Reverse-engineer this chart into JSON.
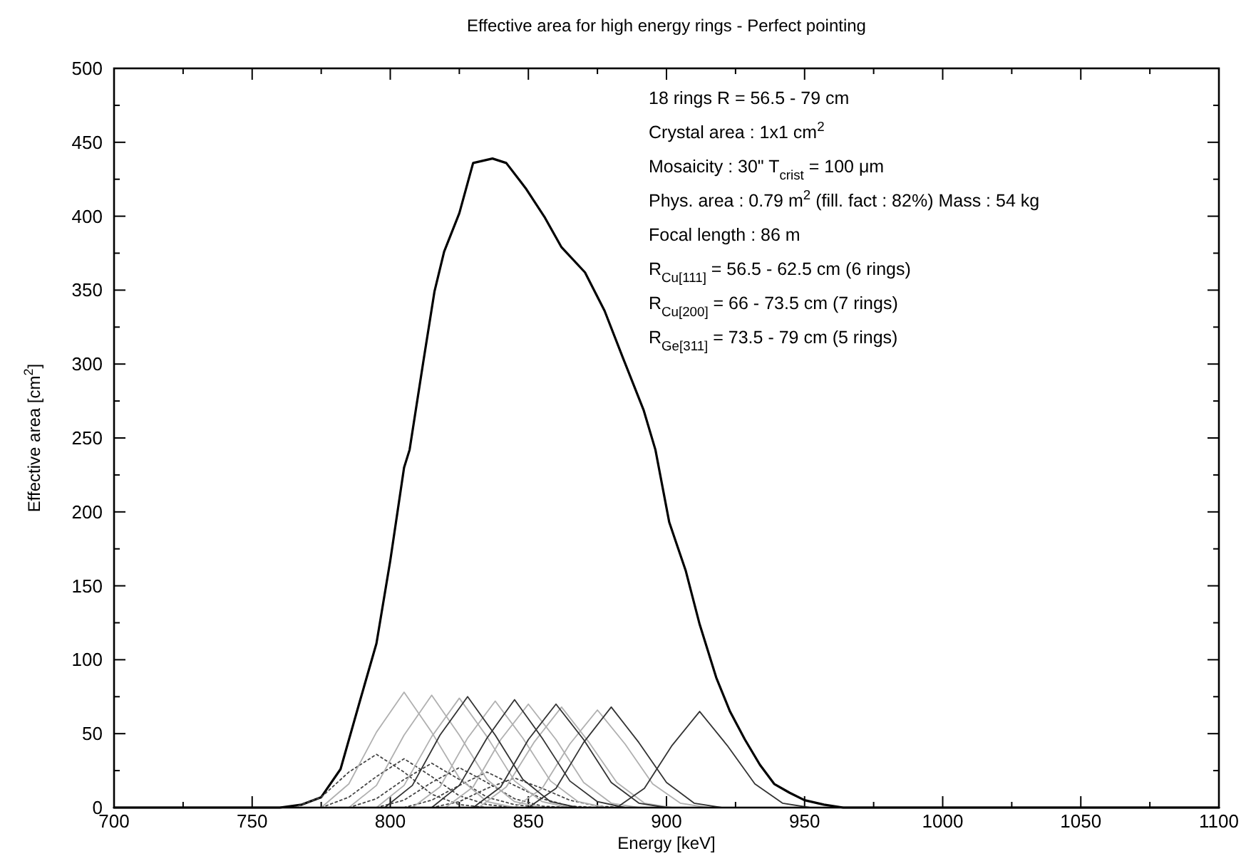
{
  "chart_data": {
    "type": "line",
    "title": "Effective area for high energy rings - Perfect pointing",
    "xlabel": "Energy [keV]",
    "ylabel": "Effective area [cm$^{2}$]",
    "xlim": [
      700,
      1100
    ],
    "ylim": [
      0,
      500
    ],
    "xticks": [
      700,
      {
        "value": 725,
        "label": null
      },
      750,
      {
        "value": 775,
        "label": null
      },
      800,
      {
        "value": 825,
        "label": null
      },
      850,
      {
        "value": 875,
        "label": null
      },
      900,
      {
        "value": 925,
        "label": null
      },
      950,
      {
        "value": 975,
        "label": null
      },
      1000,
      {
        "value": 1025,
        "label": null
      },
      1050,
      {
        "value": 1075,
        "label": null
      },
      1100
    ],
    "yticks": [
      0,
      {
        "value": 25,
        "label": null
      },
      50,
      {
        "value": 75,
        "label": null
      },
      100,
      {
        "value": 125,
        "label": null
      },
      150,
      {
        "value": 175,
        "label": null
      },
      200,
      {
        "value": 225,
        "label": null
      },
      250,
      {
        "value": 275,
        "label": null
      },
      300,
      {
        "value": 325,
        "label": null
      },
      350,
      {
        "value": 375,
        "label": null
      },
      400,
      {
        "value": 425,
        "label": null
      },
      450,
      {
        "value": 475,
        "label": null
      },
      500
    ],
    "grid": false,
    "annotations": [
      "18 rings R = 56.5 - 79 cm",
      "Crystal area : 1x1 cm$^{2}$",
      "Mosaicity : 30\"  T$_{crist}$ = 100 μm",
      "Phys. area : 0.79 m$^{2}$ (fill. fact : 82%) Mass : 54 kg",
      "Focal length : 86 m",
      "R$_{Cu[111]}$ = 56.5 - 62.5 cm (6 rings)",
      "R$_{Cu[200]}$ = 66 - 73.5 cm (7 rings)",
      "R$_{Ge[311]}$ = 73.5 - 79 cm (5 rings)"
    ],
    "series": [
      {
        "color": "#000000",
        "line_style": "solid",
        "x": [
          700,
          760,
          768,
          775,
          782,
          789,
          795,
          800,
          805,
          807,
          812,
          816,
          819.5,
          825,
          830,
          837,
          842,
          849,
          856,
          862,
          870.5,
          877.6,
          884.7,
          891.7,
          896,
          901,
          907,
          912,
          918,
          923,
          928.4,
          933.8,
          939,
          944.6,
          950,
          957,
          964,
          1100
        ],
        "values": [
          0,
          0,
          2,
          7,
          26,
          72,
          111,
          167,
          230,
          242,
          302,
          349,
          376,
          402,
          436,
          439,
          436,
          419,
          399,
          379,
          362,
          336,
          302,
          269,
          242,
          193,
          160,
          124,
          88,
          65,
          46,
          29,
          16,
          10,
          5,
          2,
          0,
          0
        ]
      },
      {
        "color": "#444444",
        "line_style": "dotted",
        "x": [
          765,
          775,
          785,
          795,
          805,
          815,
          825,
          835
        ],
        "values": [
          0,
          7,
          24,
          36,
          24,
          9,
          2,
          0
        ]
      },
      {
        "color": "#444444",
        "line_style": "dotted",
        "x": [
          775,
          785,
          795,
          805,
          815,
          825,
          835,
          845
        ],
        "values": [
          0,
          7,
          21,
          33,
          21,
          8,
          2,
          0
        ]
      },
      {
        "color": "#444444",
        "line_style": "dotted",
        "x": [
          785,
          795,
          805,
          815,
          825,
          835,
          845,
          855
        ],
        "values": [
          0,
          6,
          19,
          30,
          19,
          7,
          2,
          0
        ]
      },
      {
        "color": "#444444",
        "line_style": "dotted",
        "x": [
          795,
          805,
          815,
          825,
          835,
          845,
          855,
          865
        ],
        "values": [
          0,
          5,
          17,
          27,
          17,
          6,
          1,
          0
        ]
      },
      {
        "color": "#444444",
        "line_style": "dotted",
        "x": [
          805,
          815,
          825,
          835,
          845,
          855,
          865,
          875
        ],
        "values": [
          0,
          5,
          15,
          24,
          15,
          6,
          1,
          0
        ]
      },
      {
        "color": "#444444",
        "line_style": "dotted",
        "x": [
          815,
          825,
          835,
          845,
          855,
          865,
          875,
          885
        ],
        "values": [
          0,
          4,
          13,
          20,
          13,
          5,
          1,
          0
        ]
      },
      {
        "color": "#b0b0b0",
        "line_style": "solid",
        "x": [
          775,
          785,
          795,
          805,
          815,
          825,
          835,
          845
        ],
        "values": [
          0,
          16,
          51,
          78,
          51,
          20,
          4,
          0
        ]
      },
      {
        "color": "#b0b0b0",
        "line_style": "solid",
        "x": [
          785,
          795,
          805,
          815,
          825,
          835,
          845,
          855
        ],
        "values": [
          0,
          15,
          49,
          76,
          49,
          19,
          4,
          0
        ]
      },
      {
        "color": "#b0b0b0",
        "line_style": "solid",
        "x": [
          795,
          805,
          815,
          825,
          835,
          845,
          855,
          865
        ],
        "values": [
          0,
          15,
          48,
          74,
          48,
          18,
          4,
          0
        ]
      },
      {
        "color": "#b0b0b0",
        "line_style": "solid",
        "x": [
          808,
          818,
          828,
          838,
          848,
          858,
          868,
          878
        ],
        "values": [
          0,
          14,
          47,
          72,
          47,
          18,
          4,
          0
        ]
      },
      {
        "color": "#b0b0b0",
        "line_style": "solid",
        "x": [
          820,
          830,
          840,
          850,
          860,
          870,
          880,
          890
        ],
        "values": [
          0,
          14,
          46,
          70,
          46,
          17,
          3,
          0
        ]
      },
      {
        "color": "#b0b0b0",
        "line_style": "solid",
        "x": [
          832,
          842,
          852,
          862,
          872,
          882,
          892,
          902
        ],
        "values": [
          0,
          14,
          44,
          68,
          44,
          17,
          3,
          0
        ]
      },
      {
        "color": "#b0b0b0",
        "line_style": "solid",
        "x": [
          845,
          855,
          865,
          875,
          885,
          895,
          905,
          915
        ],
        "values": [
          0,
          13,
          43,
          66,
          43,
          16,
          3,
          0
        ]
      },
      {
        "color": "#333333",
        "line_style": "solid",
        "x": [
          798,
          808,
          818,
          828,
          838,
          848,
          858,
          868
        ],
        "values": [
          0,
          15,
          49,
          75,
          49,
          19,
          4,
          0
        ]
      },
      {
        "color": "#333333",
        "line_style": "solid",
        "x": [
          815,
          825,
          835,
          845,
          855,
          865,
          875,
          885
        ],
        "values": [
          0,
          15,
          47,
          73,
          47,
          18,
          4,
          0
        ]
      },
      {
        "color": "#333333",
        "line_style": "solid",
        "x": [
          830,
          840,
          850,
          860,
          870,
          880,
          890,
          900
        ],
        "values": [
          0,
          14,
          46,
          70,
          46,
          17,
          3,
          0
        ]
      },
      {
        "color": "#333333",
        "line_style": "solid",
        "x": [
          850,
          860,
          870,
          880,
          890,
          900,
          910,
          920
        ],
        "values": [
          0,
          13,
          44,
          68,
          44,
          17,
          3,
          0
        ]
      },
      {
        "color": "#333333",
        "line_style": "solid",
        "x": [
          882,
          892,
          902,
          912,
          922,
          932,
          942,
          952
        ],
        "values": [
          0,
          13,
          42,
          65,
          42,
          16,
          3,
          0
        ]
      }
    ]
  }
}
